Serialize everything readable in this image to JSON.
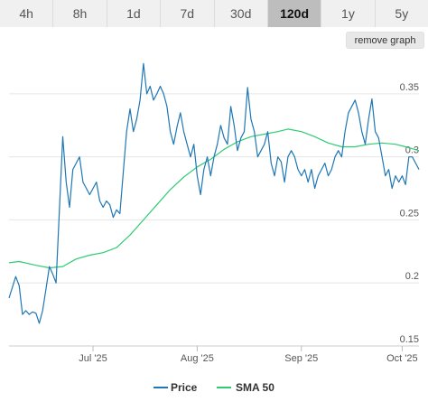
{
  "toolbar": {
    "tabs": [
      {
        "label": "4h",
        "active": false
      },
      {
        "label": "8h",
        "active": false
      },
      {
        "label": "1d",
        "active": false
      },
      {
        "label": "7d",
        "active": false
      },
      {
        "label": "30d",
        "active": false
      },
      {
        "label": "120d",
        "active": true
      },
      {
        "label": "1y",
        "active": false
      },
      {
        "label": "5y",
        "active": false
      }
    ],
    "remove_graph_label": "remove graph"
  },
  "chart_data": {
    "type": "line",
    "x_range": [
      "2025-06-06",
      "2025-10-06"
    ],
    "ylim": [
      0.15,
      0.38
    ],
    "y_ticks": [
      0.15,
      0.2,
      0.25,
      0.3,
      0.35
    ],
    "y_tick_labels": [
      "0.15",
      "0.2",
      "0.25",
      "0.3",
      "0.35"
    ],
    "x_ticks": [
      "2025-07-01",
      "2025-08-01",
      "2025-09-01",
      "2025-10-01"
    ],
    "x_tick_labels": [
      "Jul '25",
      "Aug '25",
      "Sep '25",
      "Oct '25"
    ],
    "grid": true,
    "legend_position": "bottom",
    "series": [
      {
        "name": "Price",
        "color": "#1f77b4",
        "points": [
          [
            "2025-06-06",
            0.188
          ],
          [
            "2025-06-08",
            0.205
          ],
          [
            "2025-06-09",
            0.198
          ],
          [
            "2025-06-10",
            0.175
          ],
          [
            "2025-06-11",
            0.178
          ],
          [
            "2025-06-12",
            0.175
          ],
          [
            "2025-06-13",
            0.177
          ],
          [
            "2025-06-14",
            0.176
          ],
          [
            "2025-06-15",
            0.168
          ],
          [
            "2025-06-16",
            0.178
          ],
          [
            "2025-06-17",
            0.195
          ],
          [
            "2025-06-18",
            0.213
          ],
          [
            "2025-06-19",
            0.207
          ],
          [
            "2025-06-20",
            0.2
          ],
          [
            "2025-06-22",
            0.316
          ],
          [
            "2025-06-23",
            0.28
          ],
          [
            "2025-06-24",
            0.26
          ],
          [
            "2025-06-25",
            0.29
          ],
          [
            "2025-06-26",
            0.295
          ],
          [
            "2025-06-27",
            0.3
          ],
          [
            "2025-06-28",
            0.28
          ],
          [
            "2025-06-29",
            0.275
          ],
          [
            "2025-06-30",
            0.27
          ],
          [
            "2025-07-02",
            0.28
          ],
          [
            "2025-07-03",
            0.265
          ],
          [
            "2025-07-04",
            0.26
          ],
          [
            "2025-07-05",
            0.265
          ],
          [
            "2025-07-06",
            0.262
          ],
          [
            "2025-07-07",
            0.252
          ],
          [
            "2025-07-08",
            0.258
          ],
          [
            "2025-07-09",
            0.255
          ],
          [
            "2025-07-11",
            0.32
          ],
          [
            "2025-07-12",
            0.338
          ],
          [
            "2025-07-13",
            0.32
          ],
          [
            "2025-07-14",
            0.33
          ],
          [
            "2025-07-15",
            0.345
          ],
          [
            "2025-07-16",
            0.374
          ],
          [
            "2025-07-17",
            0.35
          ],
          [
            "2025-07-18",
            0.356
          ],
          [
            "2025-07-19",
            0.345
          ],
          [
            "2025-07-20",
            0.35
          ],
          [
            "2025-07-21",
            0.356
          ],
          [
            "2025-07-22",
            0.35
          ],
          [
            "2025-07-23",
            0.34
          ],
          [
            "2025-07-24",
            0.32
          ],
          [
            "2025-07-25",
            0.31
          ],
          [
            "2025-07-26",
            0.324
          ],
          [
            "2025-07-27",
            0.335
          ],
          [
            "2025-07-28",
            0.32
          ],
          [
            "2025-07-29",
            0.31
          ],
          [
            "2025-07-30",
            0.3
          ],
          [
            "2025-07-31",
            0.31
          ],
          [
            "2025-08-01",
            0.285
          ],
          [
            "2025-08-02",
            0.27
          ],
          [
            "2025-08-03",
            0.29
          ],
          [
            "2025-08-04",
            0.3
          ],
          [
            "2025-08-05",
            0.285
          ],
          [
            "2025-08-06",
            0.3
          ],
          [
            "2025-08-07",
            0.31
          ],
          [
            "2025-08-08",
            0.325
          ],
          [
            "2025-08-09",
            0.315
          ],
          [
            "2025-08-10",
            0.31
          ],
          [
            "2025-08-11",
            0.34
          ],
          [
            "2025-08-12",
            0.325
          ],
          [
            "2025-08-13",
            0.305
          ],
          [
            "2025-08-14",
            0.315
          ],
          [
            "2025-08-15",
            0.32
          ],
          [
            "2025-08-16",
            0.355
          ],
          [
            "2025-08-17",
            0.33
          ],
          [
            "2025-08-18",
            0.32
          ],
          [
            "2025-08-19",
            0.3
          ],
          [
            "2025-08-20",
            0.305
          ],
          [
            "2025-08-21",
            0.31
          ],
          [
            "2025-08-22",
            0.32
          ],
          [
            "2025-08-23",
            0.295
          ],
          [
            "2025-08-24",
            0.285
          ],
          [
            "2025-08-25",
            0.3
          ],
          [
            "2025-08-26",
            0.296
          ],
          [
            "2025-08-27",
            0.28
          ],
          [
            "2025-08-28",
            0.3
          ],
          [
            "2025-08-29",
            0.305
          ],
          [
            "2025-08-30",
            0.3
          ],
          [
            "2025-08-31",
            0.29
          ],
          [
            "2025-09-01",
            0.285
          ],
          [
            "2025-09-02",
            0.29
          ],
          [
            "2025-09-03",
            0.28
          ],
          [
            "2025-09-04",
            0.29
          ],
          [
            "2025-09-05",
            0.275
          ],
          [
            "2025-09-06",
            0.285
          ],
          [
            "2025-09-07",
            0.29
          ],
          [
            "2025-09-08",
            0.295
          ],
          [
            "2025-09-09",
            0.285
          ],
          [
            "2025-09-10",
            0.29
          ],
          [
            "2025-09-11",
            0.3
          ],
          [
            "2025-09-12",
            0.305
          ],
          [
            "2025-09-13",
            0.3
          ],
          [
            "2025-09-14",
            0.32
          ],
          [
            "2025-09-15",
            0.335
          ],
          [
            "2025-09-16",
            0.34
          ],
          [
            "2025-09-17",
            0.345
          ],
          [
            "2025-09-18",
            0.335
          ],
          [
            "2025-09-19",
            0.32
          ],
          [
            "2025-09-20",
            0.31
          ],
          [
            "2025-09-21",
            0.33
          ],
          [
            "2025-09-22",
            0.346
          ],
          [
            "2025-09-23",
            0.32
          ],
          [
            "2025-09-24",
            0.315
          ],
          [
            "2025-09-25",
            0.3
          ],
          [
            "2025-09-26",
            0.285
          ],
          [
            "2025-09-27",
            0.29
          ],
          [
            "2025-09-28",
            0.275
          ],
          [
            "2025-09-29",
            0.285
          ],
          [
            "2025-09-30",
            0.28
          ],
          [
            "2025-10-01",
            0.285
          ],
          [
            "2025-10-02",
            0.278
          ],
          [
            "2025-10-03",
            0.3
          ],
          [
            "2025-10-04",
            0.3
          ],
          [
            "2025-10-05",
            0.295
          ],
          [
            "2025-10-06",
            0.29
          ]
        ]
      },
      {
        "name": "SMA 50",
        "color": "#2ecc71",
        "points": [
          [
            "2025-06-06",
            0.216
          ],
          [
            "2025-06-09",
            0.217
          ],
          [
            "2025-06-14",
            0.214
          ],
          [
            "2025-06-18",
            0.212
          ],
          [
            "2025-06-22",
            0.213
          ],
          [
            "2025-06-26",
            0.219
          ],
          [
            "2025-06-30",
            0.222
          ],
          [
            "2025-07-04",
            0.224
          ],
          [
            "2025-07-08",
            0.228
          ],
          [
            "2025-07-12",
            0.238
          ],
          [
            "2025-07-16",
            0.25
          ],
          [
            "2025-07-20",
            0.262
          ],
          [
            "2025-07-24",
            0.274
          ],
          [
            "2025-07-28",
            0.284
          ],
          [
            "2025-08-01",
            0.292
          ],
          [
            "2025-08-05",
            0.298
          ],
          [
            "2025-08-09",
            0.306
          ],
          [
            "2025-08-13",
            0.312
          ],
          [
            "2025-08-17",
            0.316
          ],
          [
            "2025-08-21",
            0.318
          ],
          [
            "2025-08-25",
            0.32
          ],
          [
            "2025-08-28",
            0.322
          ],
          [
            "2025-09-01",
            0.32
          ],
          [
            "2025-09-05",
            0.316
          ],
          [
            "2025-09-09",
            0.311
          ],
          [
            "2025-09-13",
            0.308
          ],
          [
            "2025-09-17",
            0.308
          ],
          [
            "2025-09-21",
            0.31
          ],
          [
            "2025-09-25",
            0.311
          ],
          [
            "2025-09-29",
            0.31
          ],
          [
            "2025-10-02",
            0.308
          ],
          [
            "2025-10-06",
            0.305
          ]
        ]
      }
    ]
  }
}
